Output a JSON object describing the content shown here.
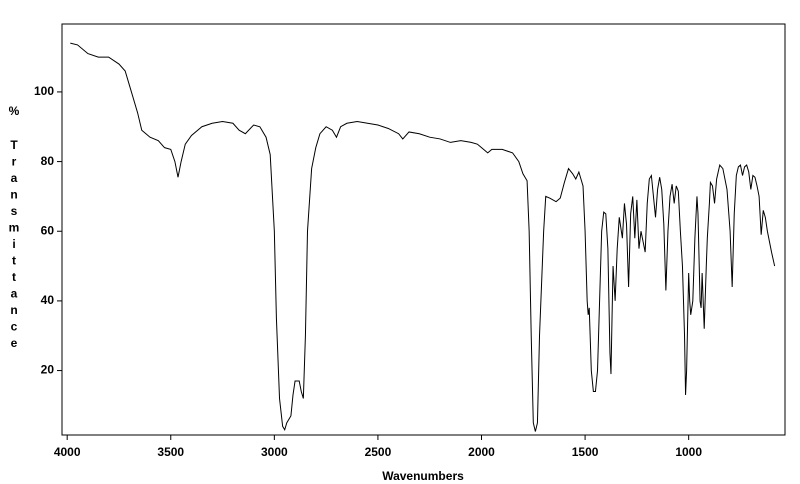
{
  "chart_data": {
    "type": "line",
    "x_label": "Wavenumbers",
    "y_label_unit": "%",
    "y_label": "Transmittance",
    "xlim": [
      4025,
      535
    ],
    "ylim": [
      1.5,
      119.5
    ],
    "xticks": [
      4000,
      3500,
      3000,
      2500,
      2000,
      1500,
      1000
    ],
    "yticks": [
      20,
      40,
      60,
      80,
      100
    ],
    "grid": false,
    "series": [
      {
        "color": "#000000",
        "x": [
          3985,
          3950,
          3900,
          3850,
          3800,
          3750,
          3720,
          3700,
          3680,
          3660,
          3640,
          3620,
          3600,
          3560,
          3530,
          3500,
          3480,
          3465,
          3450,
          3430,
          3400,
          3350,
          3300,
          3250,
          3200,
          3170,
          3140,
          3100,
          3070,
          3040,
          3020,
          3000,
          2990,
          2975,
          2960,
          2950,
          2940,
          2920,
          2910,
          2900,
          2880,
          2870,
          2860,
          2850,
          2840,
          2820,
          2800,
          2780,
          2750,
          2720,
          2700,
          2680,
          2650,
          2600,
          2500,
          2450,
          2400,
          2380,
          2350,
          2300,
          2250,
          2200,
          2150,
          2100,
          2050,
          2020,
          2000,
          1970,
          1950,
          1900,
          1850,
          1820,
          1800,
          1780,
          1770,
          1760,
          1750,
          1740,
          1730,
          1720,
          1700,
          1690,
          1670,
          1640,
          1620,
          1600,
          1580,
          1560,
          1545,
          1530,
          1510,
          1500,
          1490,
          1485,
          1480,
          1470,
          1460,
          1450,
          1440,
          1430,
          1420,
          1410,
          1400,
          1390,
          1380,
          1375,
          1370,
          1365,
          1355,
          1345,
          1335,
          1320,
          1310,
          1300,
          1290,
          1280,
          1270,
          1260,
          1250,
          1240,
          1230,
          1220,
          1210,
          1200,
          1190,
          1180,
          1170,
          1160,
          1150,
          1140,
          1130,
          1120,
          1110,
          1100,
          1090,
          1080,
          1070,
          1060,
          1050,
          1040,
          1030,
          1020,
          1015,
          1010,
          1000,
          995,
          990,
          980,
          970,
          960,
          955,
          945,
          940,
          935,
          925,
          915,
          910,
          900,
          895,
          885,
          875,
          865,
          850,
          835,
          815,
          800,
          790,
          780,
          770,
          760,
          750,
          740,
          730,
          720,
          710,
          700,
          690,
          680,
          670,
          660,
          650,
          640,
          630,
          620,
          600,
          585
        ],
        "values": [
          114,
          113.5,
          111,
          110,
          110,
          108,
          106,
          102,
          98,
          94,
          89,
          88,
          87,
          86,
          84,
          83.5,
          80,
          75.5,
          80,
          85,
          87.5,
          90,
          91,
          91.5,
          91,
          89,
          88,
          90.5,
          90,
          87,
          82,
          60,
          35,
          12,
          4,
          3,
          5,
          7,
          13,
          17,
          17,
          14,
          12,
          30,
          60,
          78,
          84,
          88,
          90,
          89,
          87,
          90,
          91,
          91.5,
          90.5,
          89.5,
          88,
          86.5,
          88.5,
          88,
          87,
          86.5,
          85.5,
          86,
          85.5,
          85,
          84,
          82.5,
          83.5,
          83.5,
          82.5,
          80,
          76.5,
          74.5,
          60,
          30,
          5,
          2.5,
          5,
          30,
          60,
          70,
          69.5,
          68.5,
          69.5,
          74,
          78,
          76.5,
          75,
          77,
          73,
          60,
          40,
          36,
          38,
          20,
          14,
          14,
          20,
          40,
          60,
          65.5,
          65,
          55,
          25,
          19,
          35,
          50,
          40,
          55,
          64,
          58,
          68,
          62,
          44,
          65,
          70,
          58,
          69,
          55,
          60,
          57,
          54,
          68,
          75,
          76,
          70,
          64,
          72,
          75.5,
          72,
          62,
          43,
          60,
          70,
          73.5,
          68,
          73,
          71.5,
          60,
          50,
          30,
          13,
          20,
          48,
          40,
          36,
          40,
          58,
          70,
          65,
          40,
          38,
          48,
          32,
          50,
          58,
          68,
          74,
          73,
          68,
          75,
          79,
          78,
          72,
          60,
          44,
          65,
          76,
          78.5,
          79,
          76,
          78.5,
          79,
          77,
          72,
          76,
          75.5,
          73,
          70,
          59,
          66,
          64,
          60,
          54,
          50
        ]
      }
    ]
  }
}
